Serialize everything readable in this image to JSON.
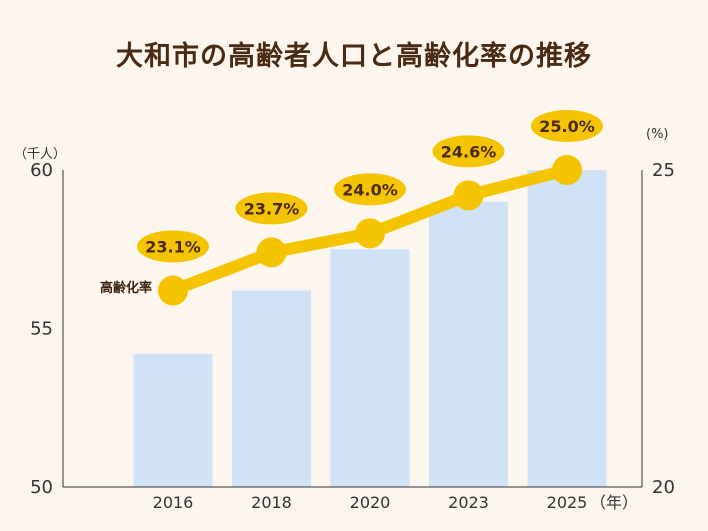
{
  "chart_data": {
    "type": "bar+line",
    "title": "大和市の高齢者人口と高齢化率の推移",
    "categories": [
      "2016",
      "2018",
      "2020",
      "2023",
      "2025"
    ],
    "x_unit": "（年）",
    "series": [
      {
        "type": "bar",
        "axis": "left",
        "values": [
          54.2,
          56.2,
          57.5,
          59.0,
          60.0
        ],
        "color": "#cfe2f6"
      },
      {
        "type": "line",
        "axis": "right",
        "name": "高齢化率",
        "values": [
          23.1,
          23.7,
          24.0,
          24.6,
          25.0
        ],
        "labels": [
          "23.1%",
          "23.7%",
          "24.0%",
          "24.6%",
          "25.0%"
        ],
        "color": "#f5c400"
      }
    ],
    "y_left": {
      "unit": "（千人）",
      "range": [
        50,
        60
      ],
      "ticks": [
        "50",
        "55",
        "60"
      ]
    },
    "y_right": {
      "unit": "(%)",
      "range": [
        20,
        25
      ],
      "ticks": [
        "20",
        "25"
      ]
    },
    "grid": false
  }
}
